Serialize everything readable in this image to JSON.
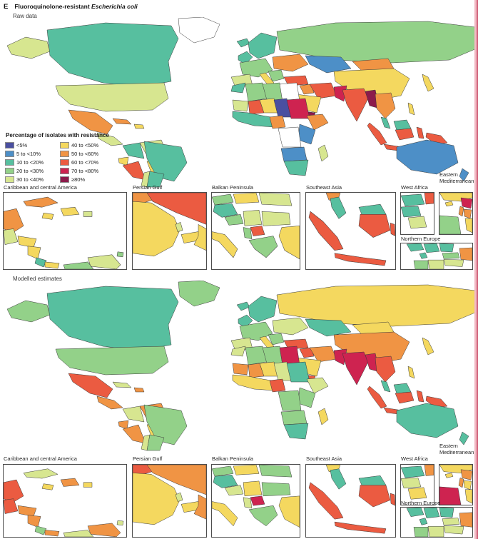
{
  "header": {
    "panel_letter": "E",
    "title_prefix": "Fluoroquinolone-resistant ",
    "title_species": "Escherichia coli"
  },
  "sections": {
    "raw_label": "Raw data",
    "modelled_label": "Modelled estimates"
  },
  "legend": {
    "title": "Percentage of isolates with resistance",
    "items": [
      {
        "key": "lt5",
        "label": "<5%",
        "color": "#4a4fa0"
      },
      {
        "key": "p5_10",
        "label": "5 to <10%",
        "color": "#4d8fc7"
      },
      {
        "key": "p10_20",
        "label": "10 to <20%",
        "color": "#57bf9f"
      },
      {
        "key": "p20_30",
        "label": "20 to <30%",
        "color": "#93d189"
      },
      {
        "key": "p30_40",
        "label": "30 to <40%",
        "color": "#d7e690"
      },
      {
        "key": "p40_50",
        "label": "40 to <50%",
        "color": "#f4d85f"
      },
      {
        "key": "p50_60",
        "label": "50 to <60%",
        "color": "#f09444"
      },
      {
        "key": "p60_70",
        "label": "60 to <70%",
        "color": "#eb5b41"
      },
      {
        "key": "p70_80",
        "label": "70 to <80%",
        "color": "#ce2350"
      },
      {
        "key": "gte80",
        "label": "≥80%",
        "color": "#8c1a4b"
      }
    ]
  },
  "inset_titles": {
    "caribbean": "Caribbean and central America",
    "persian_gulf": "Persian Gulf",
    "balkan": "Balkan Peninsula",
    "seasia": "Southeast Asia",
    "west_africa": "West Africa",
    "east_med_line1": "Eastern",
    "east_med_line2": "Mediterranean",
    "north_europe": "Northern Europe"
  },
  "style": {
    "border_color": "#3a3a3a",
    "no_data_color": "#ffffff",
    "page_edge_color": "#cf6078",
    "page_edge_light": "#f2bac4"
  },
  "maps": {
    "world_raw": {
      "greenland": "nodata",
      "iceland": "p10_20",
      "alaska": "p30_40",
      "canada": "p10_20",
      "usa": "p30_40",
      "mexico": "p50_60",
      "central_america": "p30_40",
      "cuba": "p50_60",
      "hispaniola": "p40_50",
      "colombia": "p10_20",
      "venezuela": "p30_40",
      "ecuador": "p40_50",
      "peru": "p60_70",
      "bolivia": "p40_50",
      "brazil": "p10_20",
      "chile": "p30_40",
      "argentina": "p10_20",
      "uk": "p10_20",
      "scandinavia": "p10_20",
      "iberia": "p30_40",
      "west_europe": "p20_30",
      "east_europe": "p50_60",
      "italy": "p40_50",
      "balkans": "p20_30",
      "turkey": "p60_70",
      "russia": "p20_30",
      "kazakhstan": "p5_10",
      "mongolia": "p50_60",
      "china": "p40_50",
      "japan": "p40_50",
      "iran": "p60_70",
      "iraq": "p50_60",
      "saudi": "p40_50",
      "yemen": "gte80",
      "pakistan": "p70_80",
      "india": "p60_70",
      "bangladesh_myanmar": "gte80",
      "indochina": "p50_60",
      "malay_peninsula": "p10_20",
      "sumatra": "p60_70",
      "java": "p60_70",
      "borneo_n": "p10_20",
      "borneo_s": "p60_70",
      "sulawesi": "p60_70",
      "philippines": "p40_50",
      "new_guinea": "p60_70",
      "australia": "p5_10",
      "new_zealand": "p5_10",
      "morocco": "p10_20",
      "algeria": "p20_30",
      "libya": "p20_30",
      "egypt": "nodata",
      "sudan": "p70_80",
      "mauritania": "p30_40",
      "mali": "p60_70",
      "niger": "p40_50",
      "chad": "lt5",
      "nigeria": "p50_60",
      "guinea_ghana": "p10_20",
      "ethiopia": "p50_60",
      "east_africa": "p5_10",
      "drc": "nodata",
      "angola_zambia": "p5_10",
      "southern_africa": "p10_20",
      "madagascar": "p30_40"
    },
    "world_modelled": {
      "greenland": "p20_30",
      "iceland": "p10_20",
      "alaska": "p20_30",
      "canada": "p10_20",
      "usa": "p20_30",
      "mexico": "p60_70",
      "central_america": "p50_60",
      "cuba": "p30_40",
      "hispaniola": "p50_60",
      "colombia": "p30_40",
      "venezuela": "p50_60",
      "ecuador": "p50_60",
      "peru": "p50_60",
      "bolivia": "p40_50",
      "brazil": "p20_30",
      "chile": "p30_40",
      "argentina": "p20_30",
      "uk": "p10_20",
      "scandinavia": "p10_20",
      "iberia": "p30_40",
      "west_europe": "p20_30",
      "east_europe": "p30_40",
      "italy": "p40_50",
      "balkans": "p20_30",
      "turkey": "p60_70",
      "russia": "p40_50",
      "kazakhstan": "p10_20",
      "mongolia": "p40_50",
      "china": "p50_60",
      "japan": "p40_50",
      "iran": "p50_60",
      "iraq": "p60_70",
      "saudi": "p40_50",
      "yemen": "p60_70",
      "pakistan": "p70_80",
      "india": "p70_80",
      "bangladesh_myanmar": "p70_80",
      "indochina": "p60_70",
      "malay_peninsula": "p10_20",
      "sumatra": "p60_70",
      "java": "p60_70",
      "borneo_n": "p10_20",
      "borneo_s": "p60_70",
      "sulawesi": "p60_70",
      "philippines": "p40_50",
      "new_guinea": "p60_70",
      "australia": "p10_20",
      "new_zealand": "p10_20",
      "morocco": "p30_40",
      "algeria": "p20_30",
      "libya": "p20_30",
      "egypt": "p70_80",
      "sudan": "p10_20",
      "mauritania": "p50_60",
      "mali": "p50_60",
      "niger": "p40_50",
      "chad": "p30_40",
      "nigeria": "p60_70",
      "guinea_ghana": "p40_50",
      "ethiopia": "p30_40",
      "east_africa": "p20_30",
      "drc": "p20_30",
      "angola_zambia": "p20_30",
      "southern_africa": "p10_20",
      "madagascar": "p40_50"
    },
    "caribbean_raw": {
      "yucatan": "p50_60",
      "guatemala": "p30_40",
      "honduras": "p40_50",
      "nicaragua": "p40_50",
      "costa_rica": "p10_20",
      "panama": "p40_50",
      "colombia": "p20_30",
      "venezuela": "p30_40",
      "cuba": "p50_60",
      "jamaica": "p40_50",
      "hispaniola": "p40_50",
      "puerto_rico": "p30_40",
      "trinidad": "p20_30"
    },
    "caribbean_modelled": {
      "yucatan": "p60_70",
      "guatemala": "p60_70",
      "honduras": "p50_60",
      "nicaragua": "p50_60",
      "costa_rica": "p20_30",
      "panama": "p50_60",
      "colombia": "p30_40",
      "venezuela": "p50_60",
      "cuba": "p30_40",
      "jamaica": "p40_50",
      "hispaniola": "p50_60",
      "puerto_rico": "p40_50",
      "trinidad": "p30_40"
    },
    "persian_gulf_raw": {
      "iraq": "p50_60",
      "iran": "p60_70",
      "saudi": "p40_50",
      "qatar": "p30_40",
      "uae": "p40_50",
      "oman": "p40_50"
    },
    "persian_gulf_modelled": {
      "iraq": "p60_70",
      "iran": "p50_60",
      "saudi": "p40_50",
      "qatar": "p30_40",
      "uae": "p40_50",
      "oman": "p50_60"
    },
    "balkan_raw": {
      "austria": "p20_30",
      "hungary": "p40_50",
      "romania": "p30_40",
      "croatia": "p10_20",
      "bosnia": "p20_30",
      "serbia": "p30_40",
      "bulgaria": "p30_40",
      "macedonia": "p60_70",
      "albania": "p20_30",
      "greece": "p20_30",
      "italy": "p40_50",
      "turkey": "p40_50"
    },
    "balkan_modelled": {
      "austria": "p20_30",
      "hungary": "p40_50",
      "romania": "p20_30",
      "croatia": "p10_20",
      "bosnia": "p30_40",
      "serbia": "p40_50",
      "bulgaria": "p20_30",
      "macedonia": "p70_80",
      "albania": "p30_40",
      "greece": "p20_30",
      "italy": "p40_50",
      "turkey": "p40_50"
    },
    "seasia_raw": {
      "thailand": "p50_60",
      "malay_peninsula": "p10_20",
      "sumatra": "p60_70",
      "java": "p60_70",
      "borneo_my": "p10_20",
      "borneo_id": "p60_70",
      "sulawesi": "p60_70"
    },
    "seasia_modelled": {
      "thailand": "p40_50",
      "malay_peninsula": "p10_20",
      "sumatra": "p60_70",
      "java": "p60_70",
      "borneo_my": "p10_20",
      "borneo_id": "p60_70",
      "sulawesi": "p60_70"
    },
    "west_africa_raw": {
      "senegal": "p10_20",
      "mali": "p60_70",
      "guinea": "p10_20",
      "ghana": "p30_40"
    },
    "west_africa_modelled": {
      "senegal": "p10_20",
      "mali": "p50_60",
      "guinea": "p30_40",
      "ghana": "p40_50"
    },
    "east_med_raw": {
      "turkey": "p40_50",
      "cyprus": "p40_50",
      "syria": "p70_80",
      "lebanon": "p50_60",
      "jordan": "p50_60",
      "egypt": "p20_30",
      "saudi": "p40_50"
    },
    "east_med_modelled": {
      "turkey": "p40_50",
      "cyprus": "p40_50",
      "syria": "p50_60",
      "lebanon": "p50_60",
      "jordan": "p40_50",
      "egypt": "p70_80",
      "saudi": "p40_50"
    },
    "north_europe_raw": {
      "norway": "p10_20",
      "sweden": "p10_20",
      "finland": "p10_20",
      "denmark": "p10_20",
      "estonia": "p20_30",
      "russia": "p50_60",
      "lithuania_belarus": "p30_40",
      "poland": "p30_40",
      "germany": "p20_30"
    },
    "north_europe_modelled": {
      "norway": "p10_20",
      "sweden": "p10_20",
      "finland": "p10_20",
      "denmark": "p10_20",
      "estonia": "p30_40",
      "russia": "p50_60",
      "lithuania_belarus": "p30_40",
      "poland": "p30_40",
      "germany": "p20_30"
    }
  }
}
